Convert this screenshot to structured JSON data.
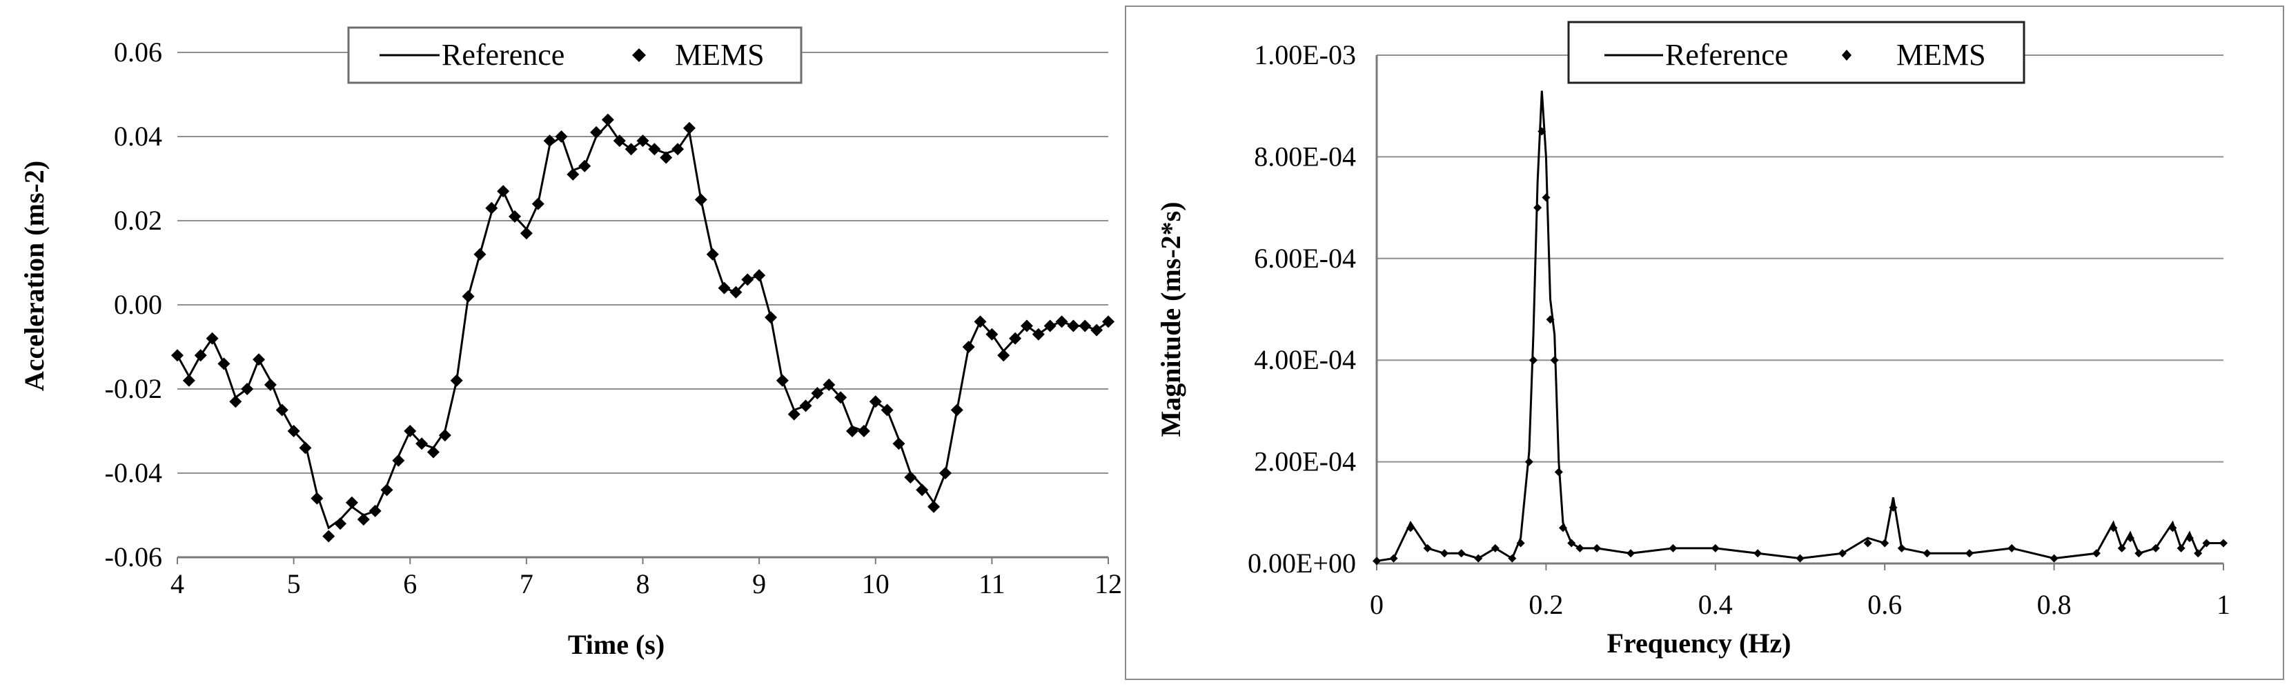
{
  "chart_data": [
    {
      "type": "line",
      "xlabel": "Time (s)",
      "ylabel": "Acceleration  (ms-2)",
      "xlim": [
        4,
        12
      ],
      "ylim": [
        -0.06,
        0.06
      ],
      "x_ticks": [
        "4",
        "5",
        "6",
        "7",
        "8",
        "9",
        "10",
        "11",
        "12"
      ],
      "y_ticks": [
        "0.06",
        "0.04",
        "0.02",
        "0.00",
        "-0.02",
        "-0.04",
        "-0.06"
      ],
      "grid": true,
      "legend_position": "top-center",
      "series": [
        {
          "name": "Reference",
          "style": "line",
          "x": [
            4.0,
            4.1,
            4.2,
            4.3,
            4.4,
            4.5,
            4.6,
            4.7,
            4.8,
            4.9,
            5.0,
            5.1,
            5.2,
            5.3,
            5.4,
            5.5,
            5.6,
            5.7,
            5.8,
            5.9,
            6.0,
            6.1,
            6.2,
            6.3,
            6.4,
            6.5,
            6.6,
            6.7,
            6.8,
            6.9,
            7.0,
            7.1,
            7.2,
            7.3,
            7.4,
            7.5,
            7.6,
            7.7,
            7.8,
            7.9,
            8.0,
            8.1,
            8.2,
            8.3,
            8.4,
            8.5,
            8.6,
            8.7,
            8.8,
            8.9,
            9.0,
            9.1,
            9.2,
            9.3,
            9.4,
            9.5,
            9.6,
            9.7,
            9.8,
            9.9,
            10.0,
            10.1,
            10.2,
            10.3,
            10.4,
            10.5,
            10.6,
            10.7,
            10.8,
            10.9,
            11.0,
            11.1,
            11.2,
            11.3,
            11.4,
            11.5,
            11.6,
            11.7,
            11.8,
            11.9,
            12.0
          ],
          "y": [
            -0.012,
            -0.017,
            -0.012,
            -0.008,
            -0.014,
            -0.022,
            -0.02,
            -0.013,
            -0.018,
            -0.025,
            -0.03,
            -0.033,
            -0.045,
            -0.053,
            -0.051,
            -0.048,
            -0.05,
            -0.049,
            -0.043,
            -0.036,
            -0.03,
            -0.033,
            -0.034,
            -0.03,
            -0.018,
            0.002,
            0.012,
            0.022,
            0.027,
            0.021,
            0.018,
            0.024,
            0.038,
            0.04,
            0.032,
            0.033,
            0.04,
            0.043,
            0.039,
            0.037,
            0.039,
            0.037,
            0.036,
            0.037,
            0.041,
            0.025,
            0.012,
            0.004,
            0.003,
            0.006,
            0.007,
            -0.003,
            -0.018,
            -0.025,
            -0.024,
            -0.021,
            -0.019,
            -0.022,
            -0.029,
            -0.03,
            -0.023,
            -0.025,
            -0.032,
            -0.04,
            -0.043,
            -0.047,
            -0.04,
            -0.025,
            -0.01,
            -0.004,
            -0.007,
            -0.011,
            -0.008,
            -0.005,
            -0.007,
            -0.005,
            -0.004,
            -0.005,
            -0.005,
            -0.006,
            -0.004
          ]
        },
        {
          "name": "MEMS",
          "style": "diamond markers",
          "x": [
            4.0,
            4.1,
            4.2,
            4.3,
            4.4,
            4.5,
            4.6,
            4.7,
            4.8,
            4.9,
            5.0,
            5.1,
            5.2,
            5.3,
            5.4,
            5.5,
            5.6,
            5.7,
            5.8,
            5.9,
            6.0,
            6.1,
            6.2,
            6.3,
            6.4,
            6.5,
            6.6,
            6.7,
            6.8,
            6.9,
            7.0,
            7.1,
            7.2,
            7.3,
            7.4,
            7.5,
            7.6,
            7.7,
            7.8,
            7.9,
            8.0,
            8.1,
            8.2,
            8.3,
            8.4,
            8.5,
            8.6,
            8.7,
            8.8,
            8.9,
            9.0,
            9.1,
            9.2,
            9.3,
            9.4,
            9.5,
            9.6,
            9.7,
            9.8,
            9.9,
            10.0,
            10.1,
            10.2,
            10.3,
            10.4,
            10.5,
            10.6,
            10.7,
            10.8,
            10.9,
            11.0,
            11.1,
            11.2,
            11.3,
            11.4,
            11.5,
            11.6,
            11.7,
            11.8,
            11.9,
            12.0
          ],
          "y": [
            -0.012,
            -0.018,
            -0.012,
            -0.008,
            -0.014,
            -0.023,
            -0.02,
            -0.013,
            -0.019,
            -0.025,
            -0.03,
            -0.034,
            -0.046,
            -0.055,
            -0.052,
            -0.047,
            -0.051,
            -0.049,
            -0.044,
            -0.037,
            -0.03,
            -0.033,
            -0.035,
            -0.031,
            -0.018,
            0.002,
            0.012,
            0.023,
            0.027,
            0.021,
            0.017,
            0.024,
            0.039,
            0.04,
            0.031,
            0.033,
            0.041,
            0.044,
            0.039,
            0.037,
            0.039,
            0.037,
            0.035,
            0.037,
            0.042,
            0.025,
            0.012,
            0.004,
            0.003,
            0.006,
            0.007,
            -0.003,
            -0.018,
            -0.026,
            -0.024,
            -0.021,
            -0.019,
            -0.022,
            -0.03,
            -0.03,
            -0.023,
            -0.025,
            -0.033,
            -0.041,
            -0.044,
            -0.048,
            -0.04,
            -0.025,
            -0.01,
            -0.004,
            -0.007,
            -0.012,
            -0.008,
            -0.005,
            -0.007,
            -0.005,
            -0.004,
            -0.005,
            -0.005,
            -0.006,
            -0.004
          ]
        }
      ]
    },
    {
      "type": "line",
      "xlabel": "Frequency (Hz)",
      "ylabel": "Magnitude (ms-2*s)",
      "xlim": [
        0,
        1
      ],
      "ylim": [
        0,
        0.001
      ],
      "x_ticks": [
        "0",
        "0.2",
        "0.4",
        "0.6",
        "0.8",
        "1"
      ],
      "y_ticks": [
        "1.00E-03",
        "8.00E-04",
        "6.00E-04",
        "4.00E-04",
        "2.00E-04",
        "0.00E+00"
      ],
      "grid": true,
      "legend_position": "top-center",
      "series": [
        {
          "name": "Reference",
          "style": "line",
          "x": [
            0.0,
            0.02,
            0.04,
            0.06,
            0.08,
            0.1,
            0.12,
            0.14,
            0.16,
            0.17,
            0.18,
            0.185,
            0.19,
            0.195,
            0.2,
            0.205,
            0.21,
            0.215,
            0.22,
            0.23,
            0.24,
            0.26,
            0.3,
            0.35,
            0.4,
            0.45,
            0.5,
            0.55,
            0.58,
            0.6,
            0.61,
            0.62,
            0.65,
            0.7,
            0.75,
            0.8,
            0.85,
            0.87,
            0.88,
            0.89,
            0.9,
            0.92,
            0.94,
            0.95,
            0.96,
            0.97,
            0.98,
            1.0
          ],
          "y": [
            5e-06,
            1e-05,
            8e-05,
            3e-05,
            2e-05,
            2e-05,
            1e-05,
            3e-05,
            1e-05,
            5e-05,
            0.00022,
            0.00045,
            0.00075,
            0.00093,
            0.0008,
            0.00052,
            0.00045,
            0.0002,
            8e-05,
            4e-05,
            3e-05,
            3e-05,
            2e-05,
            3e-05,
            3e-05,
            2e-05,
            1e-05,
            2e-05,
            5e-05,
            4e-05,
            0.00013,
            3e-05,
            2e-05,
            2e-05,
            3e-05,
            1e-05,
            2e-05,
            8e-05,
            3e-05,
            6e-05,
            2e-05,
            3e-05,
            8e-05,
            3e-05,
            6e-05,
            2e-05,
            4e-05,
            4e-05
          ]
        },
        {
          "name": "MEMS",
          "style": "diamond markers",
          "x": [
            0.0,
            0.02,
            0.04,
            0.06,
            0.08,
            0.1,
            0.12,
            0.14,
            0.16,
            0.17,
            0.18,
            0.185,
            0.19,
            0.195,
            0.2,
            0.205,
            0.21,
            0.215,
            0.22,
            0.23,
            0.24,
            0.26,
            0.3,
            0.35,
            0.4,
            0.45,
            0.5,
            0.55,
            0.58,
            0.6,
            0.61,
            0.62,
            0.65,
            0.7,
            0.75,
            0.8,
            0.85,
            0.87,
            0.88,
            0.89,
            0.9,
            0.92,
            0.94,
            0.95,
            0.96,
            0.97,
            0.98,
            1.0
          ],
          "y": [
            5e-06,
            1e-05,
            7e-05,
            3e-05,
            2e-05,
            2e-05,
            1e-05,
            3e-05,
            1e-05,
            4e-05,
            0.0002,
            0.0004,
            0.0007,
            0.00085,
            0.00072,
            0.00048,
            0.0004,
            0.00018,
            7e-05,
            4e-05,
            3e-05,
            3e-05,
            2e-05,
            3e-05,
            3e-05,
            2e-05,
            1e-05,
            2e-05,
            4e-05,
            4e-05,
            0.00011,
            3e-05,
            2e-05,
            2e-05,
            3e-05,
            1e-05,
            2e-05,
            7e-05,
            3e-05,
            5e-05,
            2e-05,
            3e-05,
            7e-05,
            3e-05,
            5e-05,
            2e-05,
            4e-05,
            4e-05
          ]
        }
      ]
    }
  ]
}
